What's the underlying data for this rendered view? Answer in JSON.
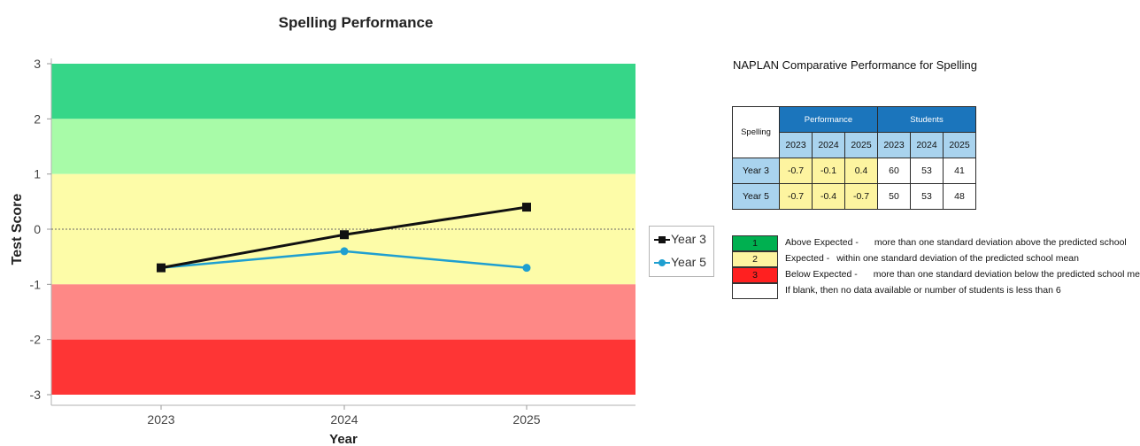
{
  "chart_data": {
    "type": "line",
    "title": "Spelling Performance",
    "xlabel": "Year",
    "ylabel": "Test Score",
    "categories": [
      "2023",
      "2024",
      "2025"
    ],
    "ylim": [
      -3,
      3
    ],
    "yticks": [
      "3",
      "2",
      "1",
      "0",
      "-1",
      "-2",
      "-3"
    ],
    "bands": [
      {
        "from": 2,
        "to": 3,
        "color": "#36d688"
      },
      {
        "from": 1,
        "to": 2,
        "color": "#a8fba8"
      },
      {
        "from": -1,
        "to": 1,
        "color": "#fdfca8"
      },
      {
        "from": -2,
        "to": -1,
        "color": "#fe8886"
      },
      {
        "from": -3,
        "to": -2,
        "color": "#fe3535"
      }
    ],
    "zero_line": "dotted",
    "series": [
      {
        "name": "Year 3",
        "values": [
          -0.7,
          -0.1,
          0.4
        ],
        "color": "#111111",
        "marker": "square"
      },
      {
        "name": "Year 5",
        "values": [
          -0.7,
          -0.4,
          -0.7
        ],
        "color": "#1f9fd0",
        "marker": "circle"
      }
    ],
    "legend": "right"
  },
  "panel": {
    "title": "NAPLAN Comparative Performance for Spelling",
    "table": {
      "corner": "Spelling",
      "groups": [
        "Performance",
        "Students"
      ],
      "years": [
        "2023",
        "2024",
        "2025"
      ],
      "rows": [
        {
          "label": "Year 3",
          "performance": [
            "-0.7",
            "-0.1",
            "0.4"
          ],
          "students": [
            "60",
            "53",
            "41"
          ]
        },
        {
          "label": "Year 5",
          "performance": [
            "-0.7",
            "-0.4",
            "-0.7"
          ],
          "students": [
            "50",
            "53",
            "48"
          ]
        }
      ]
    },
    "key": [
      {
        "code": "1",
        "color": "#00b050",
        "label": "Above Expected -",
        "desc": "more than one standard deviation above the predicted school"
      },
      {
        "code": "2",
        "color": "#fdf4a0",
        "label": "Expected -",
        "desc": "within one standard deviation of the predicted school mean"
      },
      {
        "code": "3",
        "color": "#ff2020",
        "label": "Below Expected -",
        "desc": "more than one standard deviation below the predicted school mean"
      },
      {
        "code": "",
        "color": "#ffffff",
        "label": "If blank, then no data available or number of students is less than 6",
        "desc": ""
      }
    ]
  }
}
